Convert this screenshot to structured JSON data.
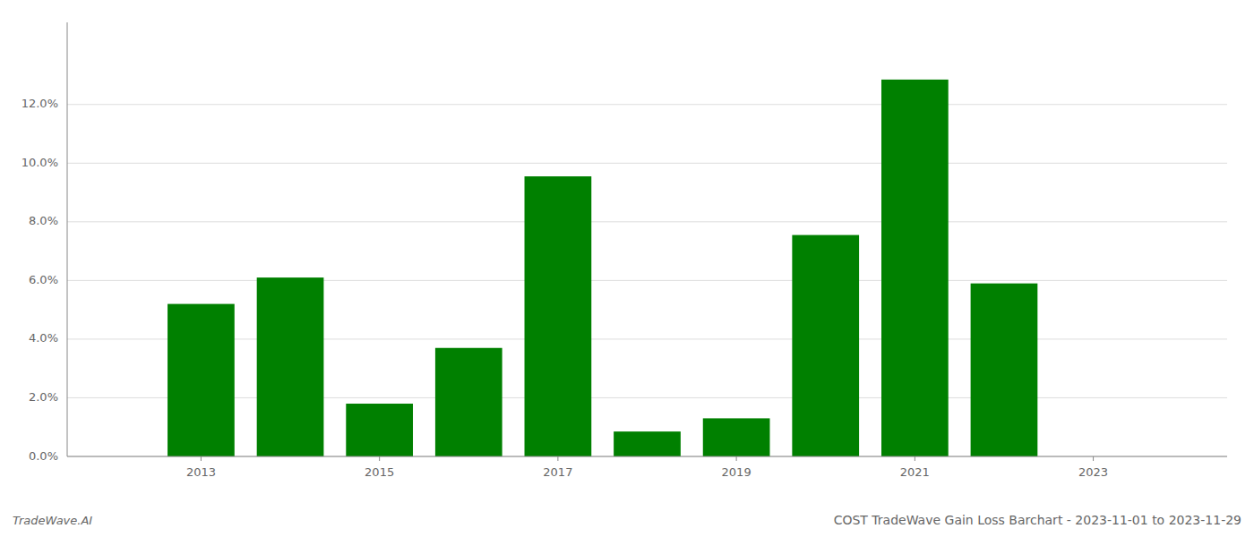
{
  "chart_data": {
    "type": "bar",
    "title": "COST TradeWave Gain Loss Barchart - 2023-11-01 to 2023-11-29",
    "annotations": [
      "TradeWave.AI"
    ],
    "x": [
      2013,
      2014,
      2015,
      2016,
      2017,
      2018,
      2019,
      2020,
      2021,
      2022
    ],
    "values": [
      0.052,
      0.061,
      0.018,
      0.037,
      0.0955,
      0.0085,
      0.013,
      0.0755,
      0.1285,
      0.059
    ],
    "color": "#008000",
    "xlim": [
      2011.5,
      2024.5
    ],
    "xticks": [
      2013,
      2015,
      2017,
      2019,
      2021,
      2023
    ],
    "ylim": [
      0,
      0.148
    ],
    "yticks": [
      {
        "value": 0.0,
        "label": "0.0%"
      },
      {
        "value": 0.02,
        "label": "2.0%"
      },
      {
        "value": 0.04,
        "label": "4.0%"
      },
      {
        "value": 0.06,
        "label": "6.0%"
      },
      {
        "value": 0.08,
        "label": "8.0%"
      },
      {
        "value": 0.1,
        "label": "10.0%"
      },
      {
        "value": 0.12,
        "label": "12.0%"
      }
    ],
    "grid": true
  }
}
